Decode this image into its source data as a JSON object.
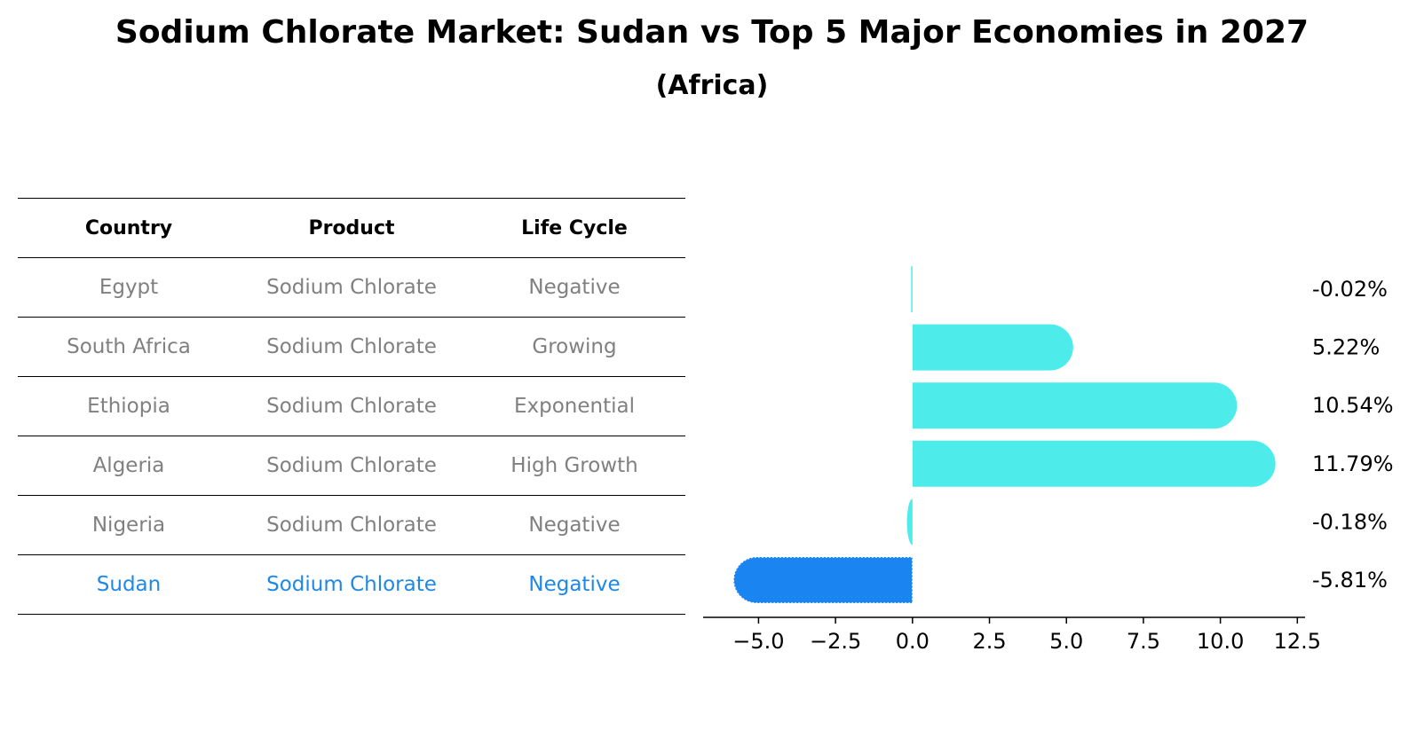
{
  "title": "Sodium Chlorate Market: Sudan vs Top 5 Major Economies in 2027",
  "subtitle": "(Africa)",
  "table": {
    "headers": [
      "Country",
      "Product",
      "Life Cycle"
    ],
    "rows": [
      {
        "country": "Egypt",
        "product": "Sodium Chlorate",
        "life_cycle": "Negative"
      },
      {
        "country": "South Africa",
        "product": "Sodium Chlorate",
        "life_cycle": "Growing"
      },
      {
        "country": "Ethiopia",
        "product": "Sodium Chlorate",
        "life_cycle": "Exponential"
      },
      {
        "country": "Algeria",
        "product": "Sodium Chlorate",
        "life_cycle": "High Growth"
      },
      {
        "country": "Nigeria",
        "product": "Sodium Chlorate",
        "life_cycle": "Negative"
      },
      {
        "country": "Sudan",
        "product": "Sodium Chlorate",
        "life_cycle": "Negative"
      }
    ],
    "highlight_color": "#1e88e5",
    "text_color": "#808080"
  },
  "chart_data": {
    "type": "bar",
    "orientation": "horizontal",
    "categories": [
      "Egypt",
      "South Africa",
      "Ethiopia",
      "Algeria",
      "Nigeria",
      "Sudan"
    ],
    "values": [
      -0.02,
      5.22,
      10.54,
      11.79,
      -0.18,
      -5.81
    ],
    "value_labels": [
      "-0.02%",
      "5.22%",
      "10.54%",
      "11.79%",
      "-0.18%",
      "-5.81%"
    ],
    "highlight_category": "Sudan",
    "bar_color": "#4deceb",
    "highlight_color": "#1a85f0",
    "xlim": [
      -6.8,
      12.75
    ],
    "xticks": [
      -5.0,
      -2.5,
      0.0,
      2.5,
      5.0,
      7.5,
      10.0,
      12.5
    ],
    "xtick_labels": [
      "−5.0",
      "−2.5",
      "0.0",
      "2.5",
      "5.0",
      "7.5",
      "10.0",
      "12.5"
    ],
    "grid": false
  }
}
